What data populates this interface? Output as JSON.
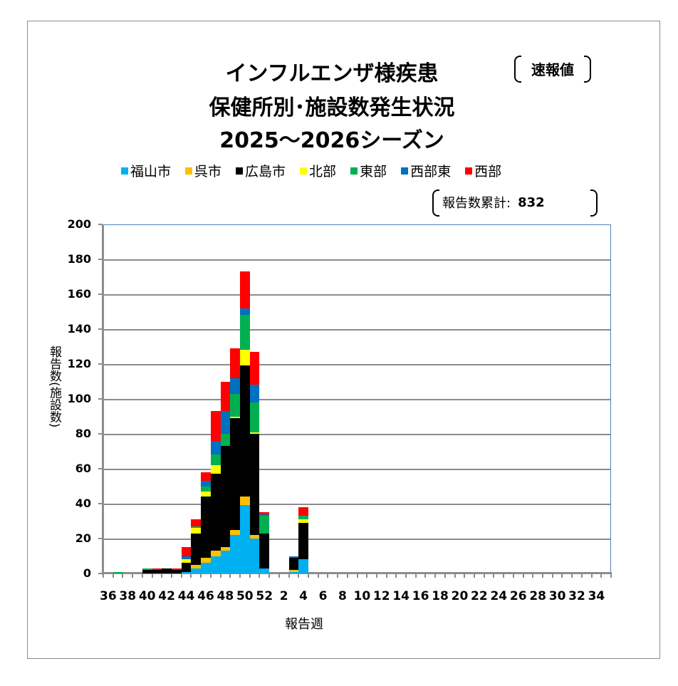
{
  "title": {
    "line1": "インフルエンザ様疾患",
    "line2": "保健所別･施設数発生状況",
    "line3": "2025～2026シーズン",
    "badge": "速報値"
  },
  "total": {
    "label": "報告数累計:",
    "value": "832"
  },
  "legend": [
    {
      "name": "福山市",
      "color": "#00b0f0"
    },
    {
      "name": "呉市",
      "color": "#ffc000"
    },
    {
      "name": "広島市",
      "color": "#000000"
    },
    {
      "name": "北部",
      "color": "#ffff00"
    },
    {
      "name": "東部",
      "color": "#00b050"
    },
    {
      "name": "西部東",
      "color": "#0070c0"
    },
    {
      "name": "西部",
      "color": "#ff0000"
    }
  ],
  "chart_data": {
    "type": "bar",
    "stacked": true,
    "title": "インフルエンザ様疾患 保健所別･施設数発生状況 2025～2026シーズン",
    "xlabel": "報告週",
    "ylabel": "報告数(施設数)",
    "ylim": [
      0,
      200
    ],
    "yticks": [
      0,
      20,
      40,
      60,
      80,
      100,
      120,
      140,
      160,
      180,
      200
    ],
    "grid": true,
    "legend_position": "top",
    "categories": [
      36,
      37,
      38,
      39,
      40,
      41,
      42,
      43,
      44,
      45,
      46,
      47,
      48,
      49,
      50,
      51,
      52,
      1,
      2,
      3,
      4,
      5,
      6,
      7,
      8,
      9,
      10,
      11,
      12,
      13,
      14,
      15,
      16,
      17,
      18,
      19,
      20,
      21,
      22,
      23,
      24,
      25,
      26,
      27,
      28,
      29,
      30,
      31,
      32,
      33,
      34,
      35
    ],
    "xtick_labels": [
      "36",
      "38",
      "40",
      "42",
      "44",
      "46",
      "48",
      "50",
      "52",
      "2",
      "4",
      "6",
      "8",
      "10",
      "12",
      "14",
      "16",
      "18",
      "20",
      "22",
      "24",
      "26",
      "28",
      "30",
      "32",
      "34"
    ],
    "series": [
      {
        "name": "福山市",
        "color": "#00b0f0",
        "values": [
          0,
          0,
          0,
          0,
          0,
          0,
          0,
          0,
          1,
          3,
          6,
          10,
          13,
          22,
          39,
          20,
          3,
          0,
          0,
          1,
          8,
          0,
          0,
          0,
          0,
          0,
          0,
          0,
          0,
          0,
          0,
          0,
          0,
          0,
          0,
          0,
          0,
          0,
          0,
          0,
          0,
          0,
          0,
          0,
          0,
          0,
          0,
          0,
          0,
          0,
          0,
          0
        ]
      },
      {
        "name": "呉市",
        "color": "#ffc000",
        "values": [
          0,
          0,
          0,
          0,
          0,
          0,
          0,
          0,
          0,
          2,
          3,
          3,
          2,
          3,
          5,
          2,
          0,
          0,
          0,
          1,
          0,
          0,
          0,
          0,
          0,
          0,
          0,
          0,
          0,
          0,
          0,
          0,
          0,
          0,
          0,
          0,
          0,
          0,
          0,
          0,
          0,
          0,
          0,
          0,
          0,
          0,
          0,
          0,
          0,
          0,
          0,
          0
        ]
      },
      {
        "name": "広島市",
        "color": "#000000",
        "values": [
          0,
          0,
          0,
          0,
          2,
          2,
          3,
          2,
          5,
          18,
          35,
          44,
          58,
          64,
          75,
          58,
          20,
          0,
          0,
          7,
          21,
          0,
          0,
          0,
          0,
          0,
          0,
          0,
          0,
          0,
          0,
          0,
          0,
          0,
          0,
          0,
          0,
          0,
          0,
          0,
          0,
          0,
          0,
          0,
          0,
          0,
          0,
          0,
          0,
          0,
          0,
          0
        ]
      },
      {
        "name": "北部",
        "color": "#ffff00",
        "values": [
          0,
          0,
          0,
          0,
          0,
          0,
          0,
          0,
          2,
          3,
          3,
          5,
          0,
          1,
          9,
          1,
          0,
          0,
          0,
          0,
          2,
          0,
          0,
          0,
          0,
          0,
          0,
          0,
          0,
          0,
          0,
          0,
          0,
          0,
          0,
          0,
          0,
          0,
          0,
          0,
          0,
          0,
          0,
          0,
          0,
          0,
          0,
          0,
          0,
          0,
          0,
          0
        ]
      },
      {
        "name": "東部",
        "color": "#00b050",
        "values": [
          0,
          1,
          0,
          0,
          1,
          0,
          0,
          0,
          0,
          1,
          3,
          6,
          7,
          13,
          20,
          17,
          10,
          0,
          0,
          0,
          2,
          0,
          0,
          0,
          0,
          0,
          0,
          0,
          0,
          0,
          0,
          0,
          0,
          0,
          0,
          0,
          0,
          0,
          0,
          0,
          0,
          0,
          0,
          0,
          0,
          0,
          0,
          0,
          0,
          0,
          0,
          0
        ]
      },
      {
        "name": "西部東",
        "color": "#0070c0",
        "values": [
          0,
          0,
          0,
          0,
          0,
          0,
          0,
          0,
          2,
          0,
          3,
          8,
          13,
          9,
          4,
          10,
          1,
          0,
          0,
          1,
          0,
          0,
          0,
          0,
          0,
          0,
          0,
          0,
          0,
          0,
          0,
          0,
          0,
          0,
          0,
          0,
          0,
          0,
          0,
          0,
          0,
          0,
          0,
          0,
          0,
          0,
          0,
          0,
          0,
          0,
          0,
          0
        ]
      },
      {
        "name": "西部",
        "color": "#ff0000",
        "values": [
          0,
          0,
          0,
          0,
          0,
          1,
          0,
          1,
          5,
          4,
          5,
          17,
          17,
          17,
          21,
          19,
          1,
          0,
          0,
          0,
          5,
          0,
          0,
          0,
          0,
          0,
          0,
          0,
          0,
          0,
          0,
          0,
          0,
          0,
          0,
          0,
          0,
          0,
          0,
          0,
          0,
          0,
          0,
          0,
          0,
          0,
          0,
          0,
          0,
          0,
          0,
          0
        ]
      }
    ],
    "totals": [
      0,
      1,
      0,
      0,
      3,
      3,
      3,
      3,
      15,
      31,
      58,
      93,
      110,
      129,
      173,
      127,
      35,
      0,
      0,
      10,
      38,
      0,
      0,
      0,
      0,
      0,
      0,
      0,
      0,
      0,
      0,
      0,
      0,
      0,
      0,
      0,
      0,
      0,
      0,
      0,
      0,
      0,
      0,
      0,
      0,
      0,
      0,
      0,
      0,
      0,
      0,
      0
    ]
  }
}
